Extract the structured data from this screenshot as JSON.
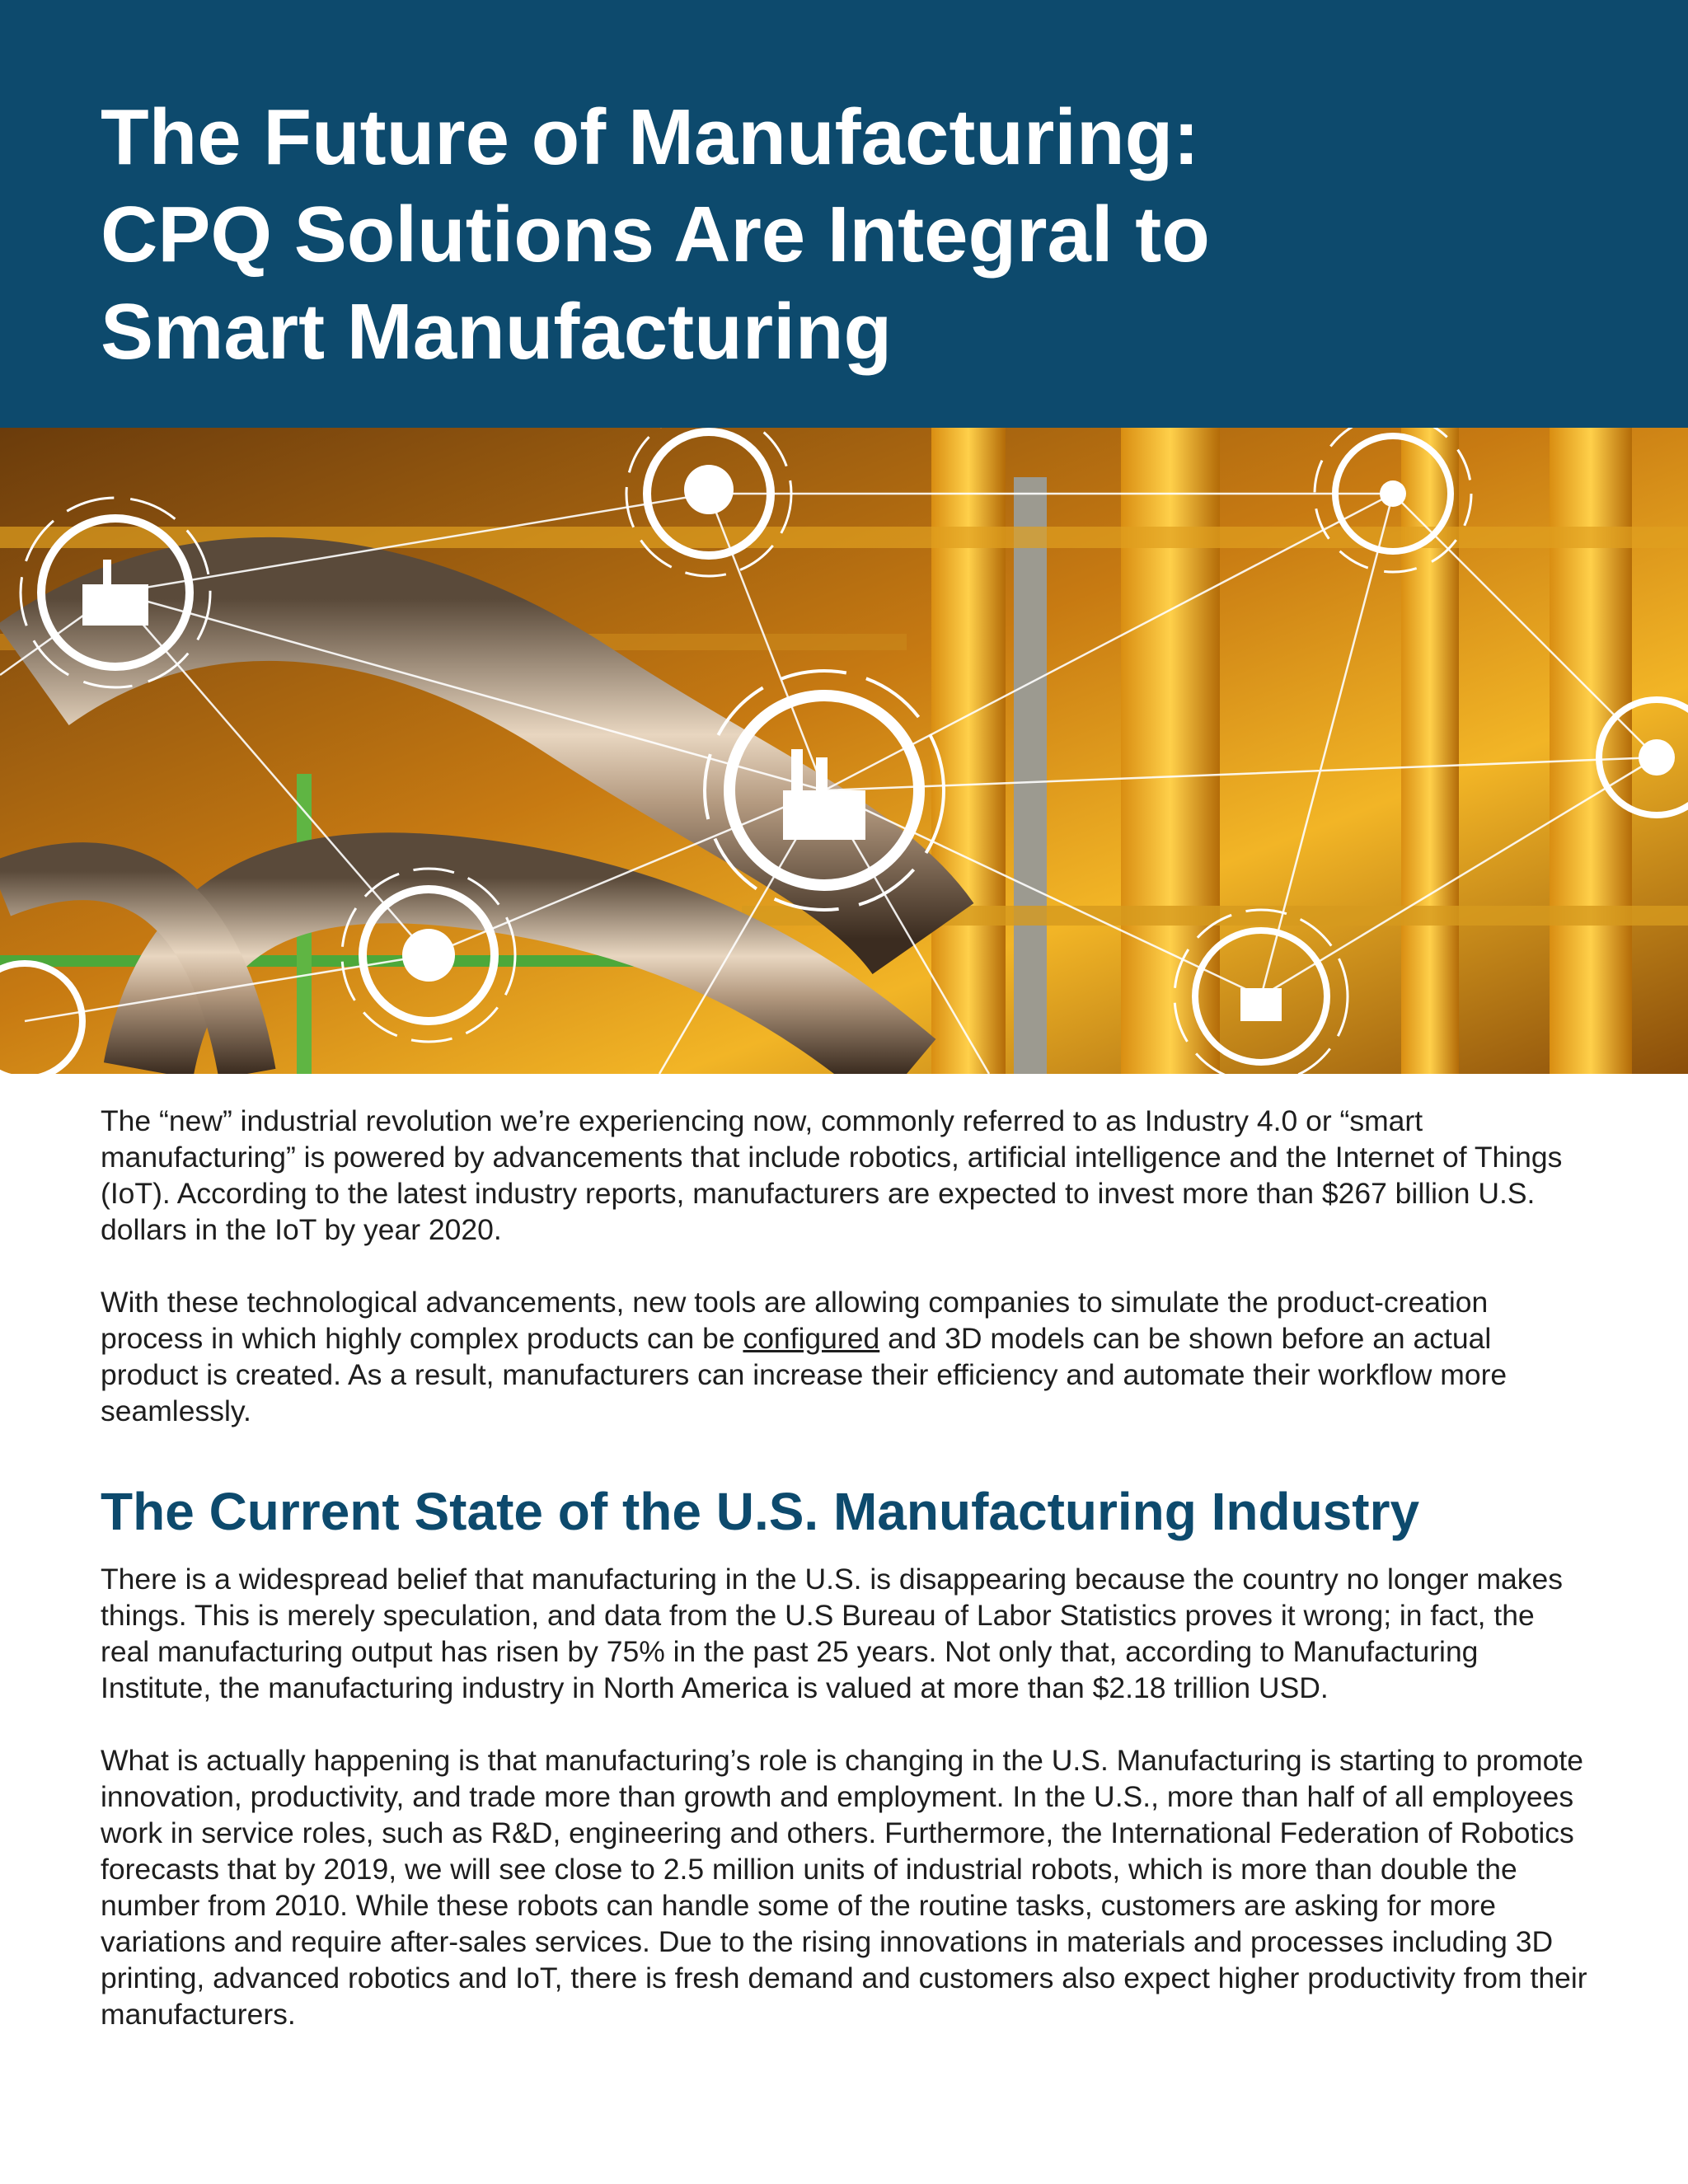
{
  "header": {
    "title_lines": [
      "The Future of Manufacturing:",
      "CPQ Solutions Are Integral to",
      "Smart Manufacturing"
    ]
  },
  "body": {
    "paragraphs_intro": [
      {
        "segments": [
          "The “new” industrial revolution we’re experiencing now, commonly referred to as Industry 4.0 or “smart manufacturing” is powered by advancements that include robotics, artificial intelligence and the Internet of Things (IoT). According to the latest industry reports, manufacturers are expected to invest more than $267 billion U.S. dollars in the IoT by year 2020."
        ]
      },
      {
        "segments": [
          "With these technological advancements, new tools are allowing companies to simulate the product-creation process in which highly complex products can be ",
          "configured",
          " and 3D models can be shown before an actual product is created. As a result, manufacturers can increase their efficiency and automate their workflow more seamlessly."
        ]
      }
    ],
    "section_heading": "The Current State of the U.S. Manufacturing Industry",
    "paragraphs_section": [
      "There is a widespread belief that manufacturing in the U.S. is disappearing because the country no longer makes things. This is merely speculation, and data from the U.S Bureau of Labor Statistics proves it wrong; in fact, the real manufacturing output has risen by 75% in the past 25 years. Not only that, according to Manufacturing Institute, the manufacturing industry in North America is valued at more than $2.18 trillion USD.",
      "What is actually happening is that manufacturing’s role is changing in the U.S. Manufacturing is starting to promote innovation, productivity, and trade more than growth and employment. In the U.S., more than half of all employees work in service roles, such as R&D, engineering and others. Furthermore, the International Federation of Robotics forecasts that by 2019, we will see close to 2.5 million units of industrial robots, which is more than double the number from 2010. While these robots can handle some of the routine tasks, customers are asking for more variations and require after-sales services. Due to the rising innovations in materials and processes including 3D printing, advanced robotics and IoT, there is fresh demand and customers also expect higher productivity from their manufacturers."
    ]
  }
}
